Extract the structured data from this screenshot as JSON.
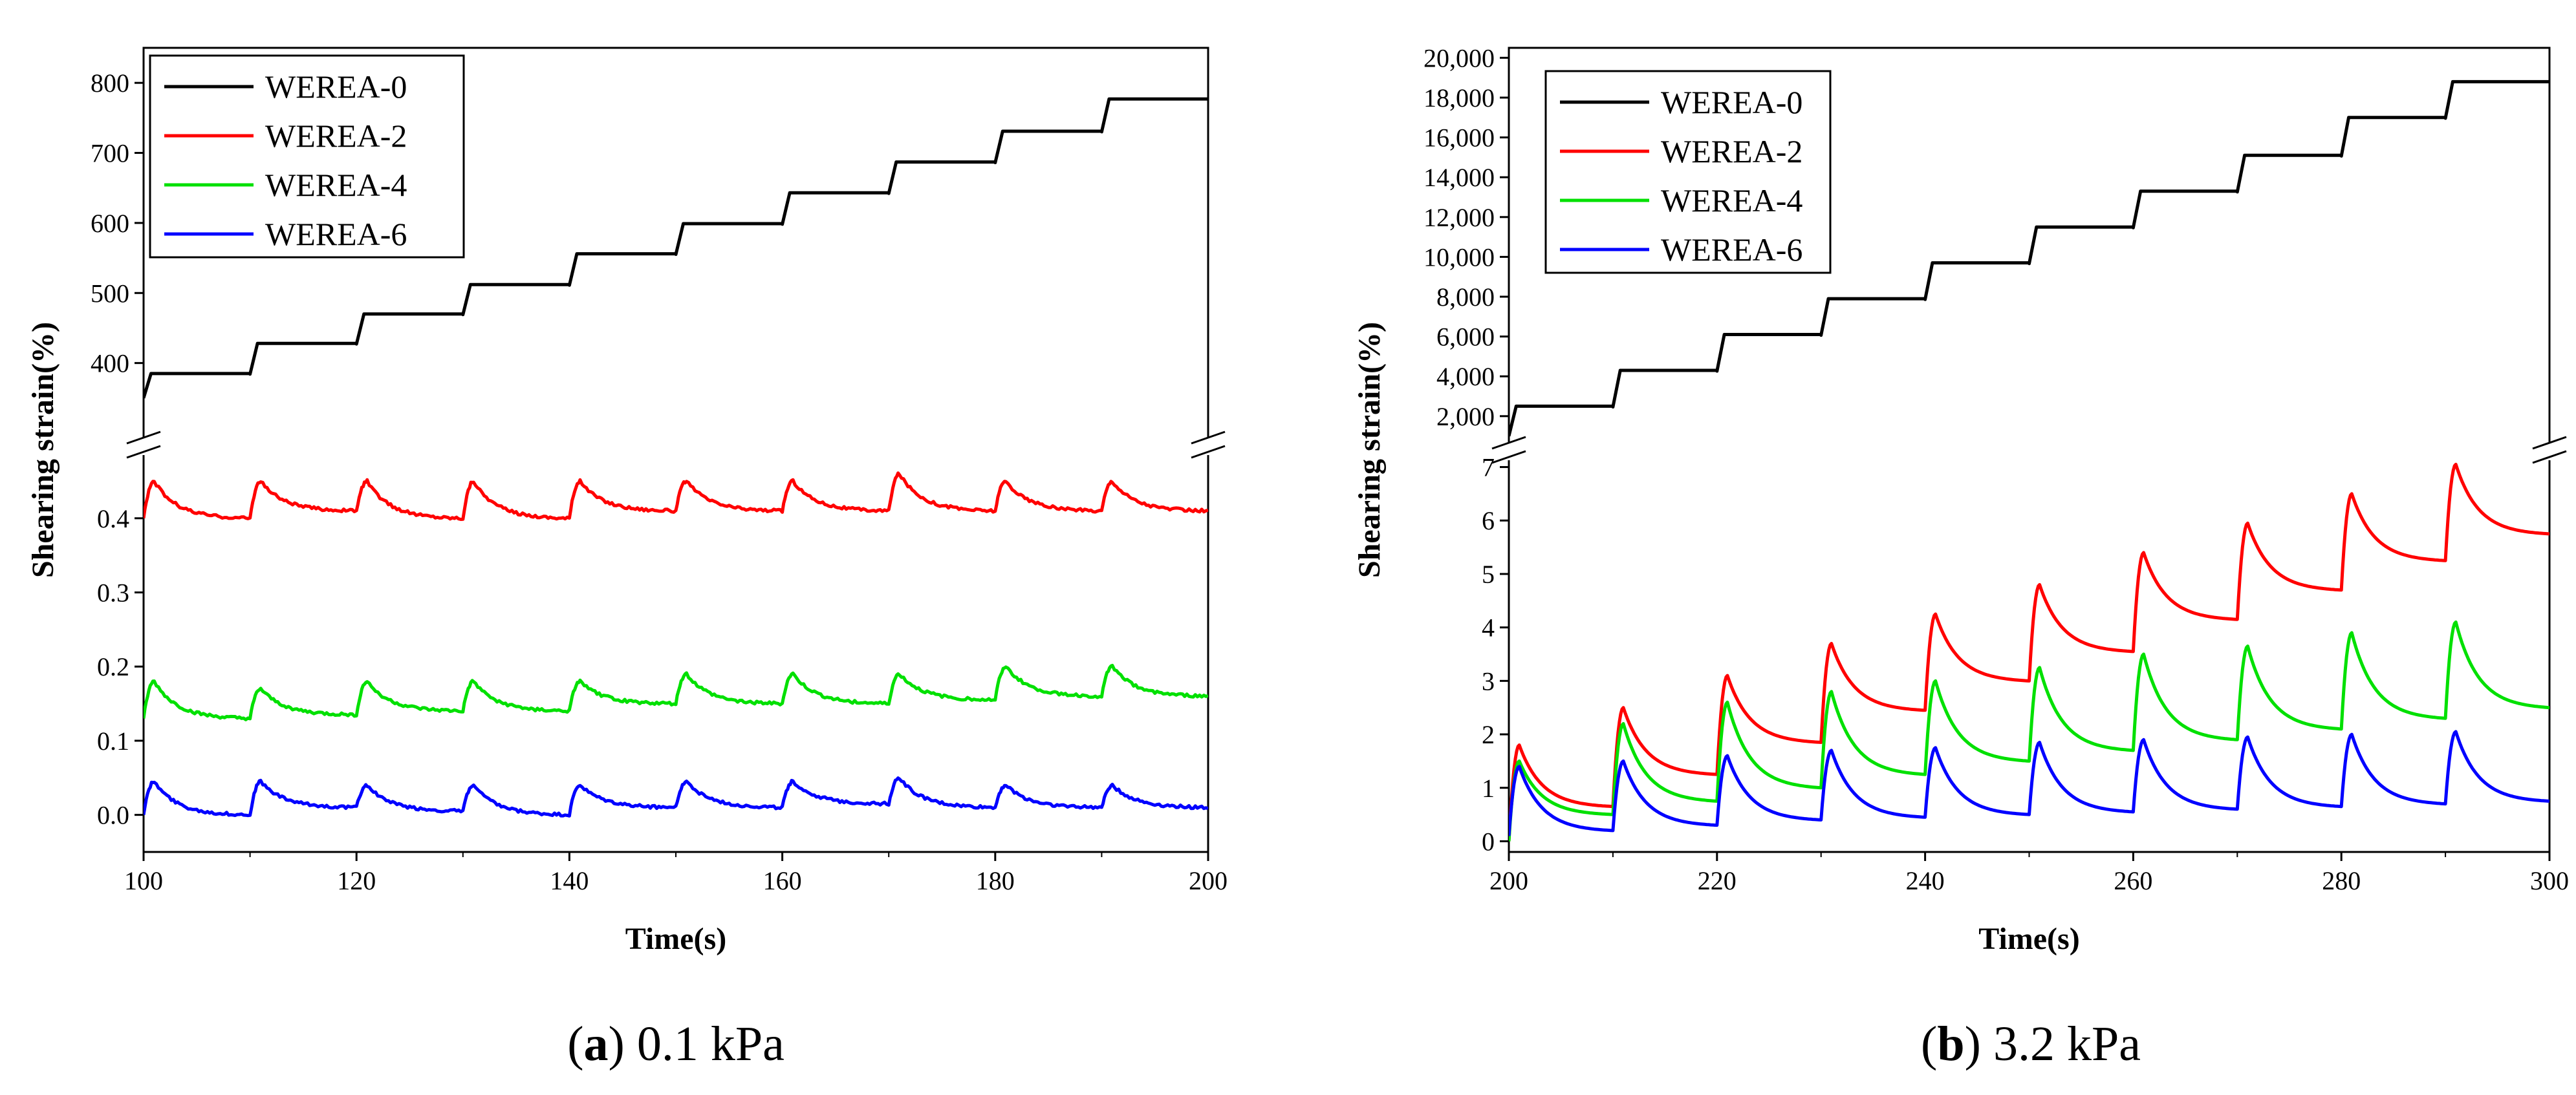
{
  "chart_data": [
    {
      "type": "line",
      "caption_letter": "a",
      "caption_text": " 0.1 kPa",
      "xlabel": "Time(s)",
      "ylabel": "Shearing strain(%)",
      "xlim": [
        100,
        200
      ],
      "xticks": [
        "100",
        "120",
        "140",
        "160",
        "180",
        "200"
      ],
      "upper_ylim": [
        300,
        850
      ],
      "upper_yticks": [
        "400",
        "500",
        "600",
        "700",
        "800"
      ],
      "lower_ylim": [
        -0.05,
        0.48
      ],
      "lower_yticks": [
        "0.0",
        "0.1",
        "0.2",
        "0.3",
        "0.4"
      ],
      "legend_position": "top-left",
      "series": [
        {
          "name": "WEREA-0",
          "color": "#000000",
          "axis": "upper",
          "kind": "step",
          "start": 350,
          "levels": [
            385,
            428,
            470,
            512,
            556,
            599,
            643,
            687,
            731,
            777
          ],
          "end": 775
        },
        {
          "name": "WEREA-2",
          "color": "#ff0000",
          "axis": "lower",
          "kind": "creep",
          "start": 0.4,
          "peaks": [
            0.45,
            0.45,
            0.45,
            0.45,
            0.45,
            0.45,
            0.45,
            0.46,
            0.45,
            0.45
          ],
          "troughs": [
            0.4,
            0.41,
            0.4,
            0.4,
            0.41,
            0.41,
            0.41,
            0.41,
            0.41,
            0.41
          ]
        },
        {
          "name": "WEREA-4",
          "color": "#00e000",
          "axis": "lower",
          "kind": "creep",
          "start": 0.13,
          "peaks": [
            0.18,
            0.17,
            0.18,
            0.18,
            0.18,
            0.19,
            0.19,
            0.19,
            0.2,
            0.2
          ],
          "troughs": [
            0.13,
            0.135,
            0.14,
            0.14,
            0.15,
            0.15,
            0.15,
            0.155,
            0.16,
            0.16
          ]
        },
        {
          "name": "WEREA-6",
          "color": "#0000ff",
          "axis": "lower",
          "kind": "creep",
          "start": 0.0,
          "peaks": [
            0.045,
            0.045,
            0.04,
            0.04,
            0.04,
            0.045,
            0.045,
            0.05,
            0.04,
            0.04
          ],
          "troughs": [
            0.0,
            0.01,
            0.005,
            0.0,
            0.01,
            0.01,
            0.015,
            0.01,
            0.01,
            0.01
          ]
        }
      ]
    },
    {
      "type": "line",
      "caption_letter": "b",
      "caption_text": " 3.2 kPa",
      "xlabel": "Time(s)",
      "ylabel": "Shearing strain(%)",
      "xlim": [
        200,
        300
      ],
      "xticks": [
        "200",
        "220",
        "240",
        "260",
        "280",
        "300"
      ],
      "upper_ylim": [
        500,
        20500
      ],
      "upper_yticks": [
        "2,000",
        "4,000",
        "6,000",
        "8,000",
        "10,000",
        "12,000",
        "14,000",
        "16,000",
        "18,000",
        "20,000"
      ],
      "lower_ylim": [
        -0.2,
        7.2
      ],
      "lower_yticks": [
        "0",
        "1",
        "2",
        "3",
        "4",
        "5",
        "6",
        "7"
      ],
      "legend_position": "top-left",
      "series": [
        {
          "name": "WEREA-0",
          "color": "#000000",
          "axis": "upper",
          "kind": "step",
          "start": 1000,
          "levels": [
            2500,
            4300,
            6100,
            7900,
            9700,
            11500,
            13300,
            15100,
            17000,
            18800
          ],
          "end": 18800
        },
        {
          "name": "WEREA-2",
          "color": "#ff0000",
          "axis": "lower",
          "kind": "creep",
          "start": 0.0,
          "peaks": [
            1.8,
            2.5,
            3.1,
            3.7,
            4.25,
            4.8,
            5.4,
            5.95,
            6.5,
            7.05
          ],
          "troughs": [
            0.65,
            1.25,
            1.85,
            2.45,
            3.0,
            3.55,
            4.15,
            4.7,
            5.25,
            5.75
          ]
        },
        {
          "name": "WEREA-4",
          "color": "#00e000",
          "axis": "lower",
          "kind": "creep",
          "start": 0.0,
          "peaks": [
            1.5,
            2.2,
            2.6,
            2.8,
            3.0,
            3.25,
            3.5,
            3.65,
            3.9,
            4.1
          ],
          "troughs": [
            0.5,
            0.75,
            1.0,
            1.25,
            1.5,
            1.7,
            1.9,
            2.1,
            2.3,
            2.5
          ]
        },
        {
          "name": "WEREA-6",
          "color": "#0000ff",
          "axis": "lower",
          "kind": "creep",
          "start": 0.1,
          "peaks": [
            1.4,
            1.5,
            1.6,
            1.7,
            1.75,
            1.85,
            1.9,
            1.95,
            2.0,
            2.05
          ],
          "troughs": [
            0.2,
            0.3,
            0.4,
            0.45,
            0.5,
            0.55,
            0.6,
            0.65,
            0.7,
            0.75
          ]
        }
      ]
    }
  ]
}
